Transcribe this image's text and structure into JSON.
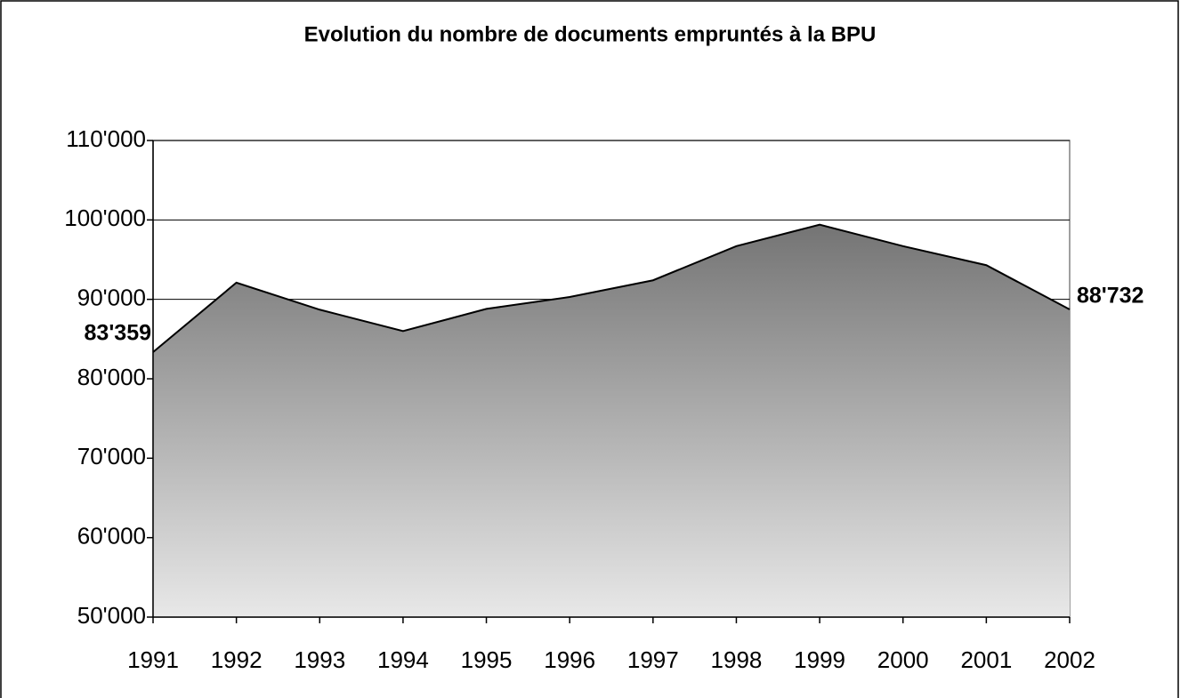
{
  "chart_data": {
    "type": "area",
    "title": "Evolution du nombre de documents empruntés à la BPU",
    "categories": [
      "1991",
      "1992",
      "1993",
      "1994",
      "1995",
      "1996",
      "1997",
      "1998",
      "1999",
      "2000",
      "2001",
      "2002"
    ],
    "values": [
      83359,
      92100,
      88700,
      86000,
      88800,
      90300,
      92400,
      96700,
      99400,
      96700,
      94300,
      88732
    ],
    "value_labels": [
      "83'359",
      null,
      null,
      null,
      null,
      null,
      null,
      null,
      null,
      null,
      null,
      "88'732"
    ],
    "gradient": [
      "#747474",
      "#e8e8e8"
    ],
    "line_color": "#000000",
    "ylim": [
      50000,
      110000
    ],
    "yticks": [
      {
        "value": 50000,
        "label": "50'000"
      },
      {
        "value": 60000,
        "label": "60'000"
      },
      {
        "value": 70000,
        "label": "70'000"
      },
      {
        "value": 80000,
        "label": "80'000"
      },
      {
        "value": 90000,
        "label": "90'000"
      },
      {
        "value": 100000,
        "label": "100'000"
      },
      {
        "value": 110000,
        "label": "110'000"
      }
    ],
    "grid": true
  }
}
